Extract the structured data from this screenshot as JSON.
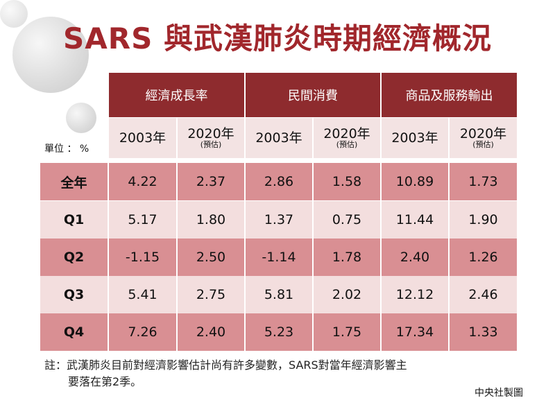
{
  "title": "SARS 與武漢肺炎時期經濟概況",
  "unit_label": "單位 ： %",
  "chart_data": {
    "type": "table",
    "groups": [
      "經濟成長率",
      "民間消費",
      "商品及服務輸出"
    ],
    "columns": [
      {
        "year": "2003年",
        "note": ""
      },
      {
        "year": "2020年",
        "note": "(預估)"
      },
      {
        "year": "2003年",
        "note": ""
      },
      {
        "year": "2020年",
        "note": "(預估)"
      },
      {
        "year": "2003年",
        "note": ""
      },
      {
        "year": "2020年",
        "note": "(預估)"
      }
    ],
    "rows": [
      {
        "label": "全年",
        "values": [
          "4.22",
          "2.37",
          "2.86",
          "1.58",
          "10.89",
          "1.73"
        ]
      },
      {
        "label": "Q1",
        "values": [
          "5.17",
          "1.80",
          "1.37",
          "0.75",
          "11.44",
          "1.90"
        ]
      },
      {
        "label": "Q2",
        "values": [
          "-1.15",
          "2.50",
          "-1.14",
          "1.78",
          "2.40",
          "1.26"
        ]
      },
      {
        "label": "Q3",
        "values": [
          "5.41",
          "2.75",
          "5.81",
          "2.02",
          "12.12",
          "2.46"
        ]
      },
      {
        "label": "Q4",
        "values": [
          "7.26",
          "2.40",
          "5.23",
          "1.75",
          "17.34",
          "1.33"
        ]
      }
    ]
  },
  "note_line1": "註：武漢肺炎目前對經濟影響估計尚有許多變數，SARS對當年經濟影響主",
  "note_line2": "要落在第2季。",
  "credit": "中央社製圖"
}
